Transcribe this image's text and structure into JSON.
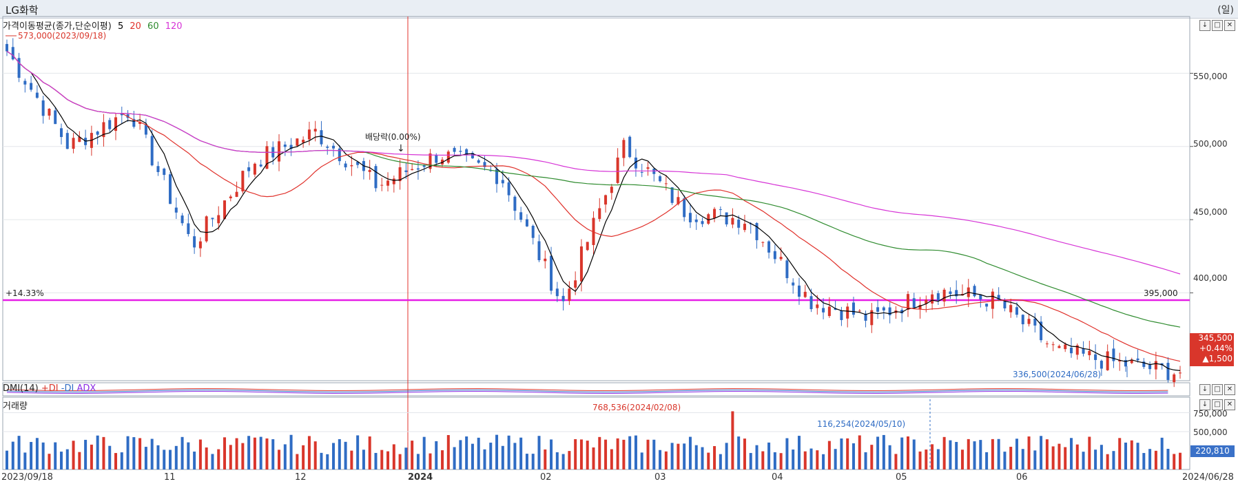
{
  "title": "LG화학",
  "unit": "(일)",
  "legend": {
    "name": "가격이동평균(종가,단순이평)",
    "ma": [
      {
        "period": "5",
        "color": "#000000"
      },
      {
        "period": "20",
        "color": "#e0312b"
      },
      {
        "period": "60",
        "color": "#2e8b2e"
      },
      {
        "period": "120",
        "color": "#d633d6"
      }
    ]
  },
  "annotations": {
    "high": "573,000(2023/09/18)",
    "low": "336,500(2024/06/28)",
    "dividend": "배당락(0.00%)",
    "pct": "+14.33%",
    "hline_value": "395,000",
    "vol_max": "768,536(2024/02/08)",
    "vol_note": "116,254(2024/05/10)"
  },
  "price_box": {
    "price": "345,500",
    "change_pct": "+0.44%",
    "change": "▲1,500"
  },
  "dmi": {
    "label": "DMI(14)",
    "plus": "+DI",
    "minus": "-DI",
    "adx": "ADX"
  },
  "volume": {
    "label": "거래량",
    "last": "220,810",
    "ticks": [
      "750,000",
      "500,000"
    ]
  },
  "price_ticks": [
    "550,000",
    "500,000",
    "450,000",
    "400,000"
  ],
  "x_labels": [
    "2023/09/18",
    "11",
    "12",
    "2024",
    "02",
    "03",
    "04",
    "05",
    "06",
    "2024/06/28"
  ],
  "colors": {
    "up": "#d9362b",
    "down": "#2f6cc4",
    "hline": "#e61ee6",
    "crosshair": "#e0312b"
  },
  "chart_data": {
    "type": "candlestick",
    "title": "LG화학",
    "period": {
      "start": "2023/09/18",
      "end": "2024/06/28"
    },
    "ylim": [
      340000,
      585000
    ],
    "price_axis_ticks": [
      400000,
      450000,
      500000,
      550000
    ],
    "month_labels": [
      "11",
      "12",
      "2024",
      "02",
      "03",
      "04",
      "05",
      "06"
    ],
    "hline": 395000,
    "high": {
      "value": 573000,
      "date": "2023/09/18"
    },
    "low": {
      "value": 336500,
      "date": "2024/06/28"
    },
    "last_close": 345500,
    "change": 1500,
    "change_pct": 0.44,
    "close_samples": [
      {
        "date": "2023/09/18",
        "close": 565000
      },
      {
        "date": "2023/10/05",
        "close": 500000
      },
      {
        "date": "2023/10/20",
        "close": 525000
      },
      {
        "date": "2023/10/31",
        "close": 432000
      },
      {
        "date": "2023/11/15",
        "close": 490000
      },
      {
        "date": "2023/11/27",
        "close": 510000
      },
      {
        "date": "2023/12/13",
        "close": 473000
      },
      {
        "date": "2023/12/27",
        "close": 495000
      },
      {
        "date": "2024/01/12",
        "close": 480000
      },
      {
        "date": "2024/01/31",
        "close": 392000
      },
      {
        "date": "2024/02/20",
        "close": 500000
      },
      {
        "date": "2024/03/05",
        "close": 455000
      },
      {
        "date": "2024/03/20",
        "close": 450000
      },
      {
        "date": "2024/04/10",
        "close": 395000
      },
      {
        "date": "2024/04/25",
        "close": 382000
      },
      {
        "date": "2024/05/10",
        "close": 402000
      },
      {
        "date": "2024/05/30",
        "close": 395000
      },
      {
        "date": "2024/06/10",
        "close": 360000
      },
      {
        "date": "2024/06/20",
        "close": 352000
      },
      {
        "date": "2024/06/28",
        "close": 345500
      }
    ],
    "volume_max": {
      "value": 768536,
      "date": "2024/02/08"
    },
    "volume_last": 220810,
    "volume_axis_ticks": [
      500000,
      750000
    ]
  }
}
